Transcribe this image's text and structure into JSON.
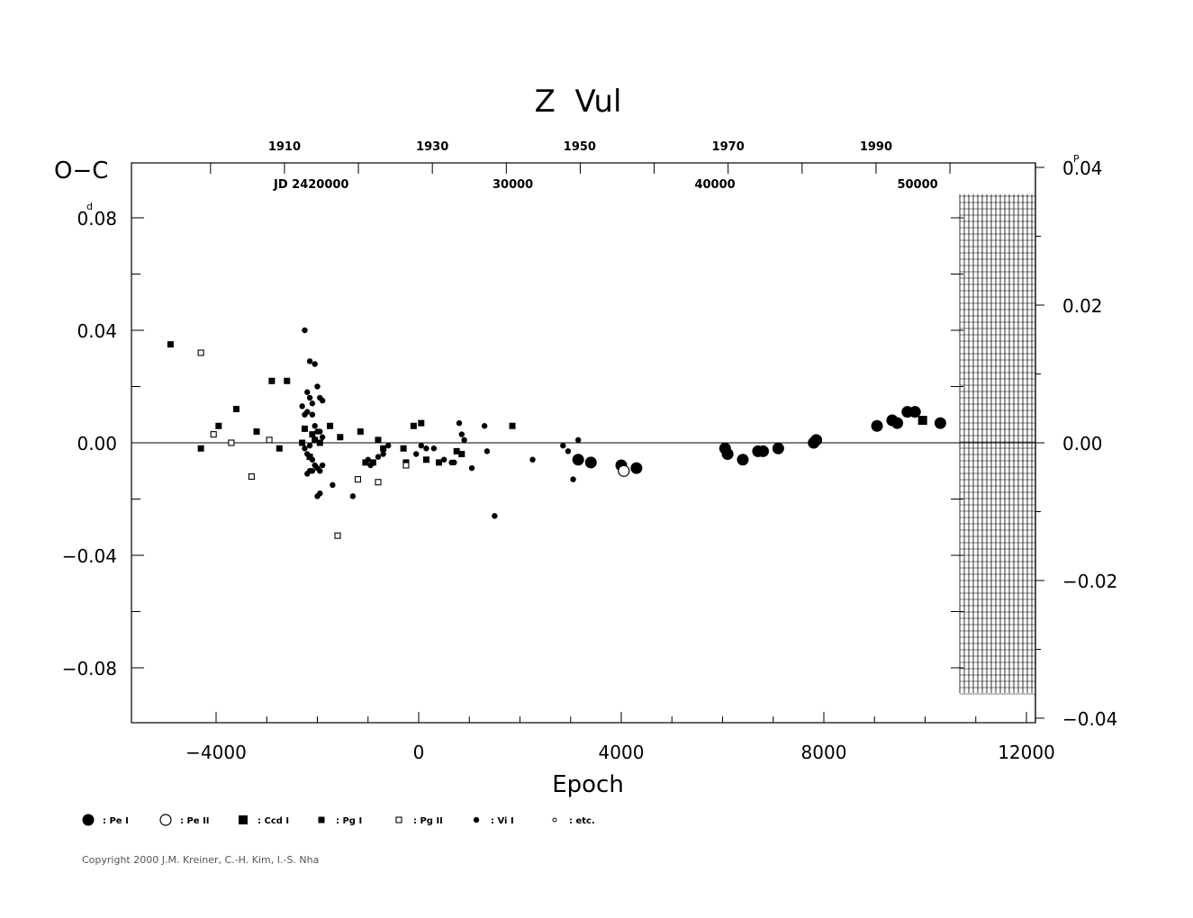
{
  "chart_data": {
    "type": "scatter",
    "title": "Z  Vul",
    "xlabel": "Epoch",
    "ylabel": "O−C",
    "ylabel_unit": "d",
    "ylabel_right_unit": "P",
    "xlim": [
      -5500,
      12000
    ],
    "ylim": [
      -0.1,
      0.1
    ],
    "x_ticks": [
      "−4000",
      "0",
      "4000",
      "8000",
      "12000"
    ],
    "x_tick_values": [
      -4000,
      0,
      4000,
      8000,
      12000
    ],
    "y_ticks": [
      "0.08",
      "0.04",
      "0.00",
      "−0.04",
      "−0.08"
    ],
    "y_tick_values": [
      0.08,
      0.04,
      0.0,
      -0.04,
      -0.08
    ],
    "y_right_ticks": [
      "0.04",
      "0.02",
      "0.00",
      "−0.02",
      "−0.04"
    ],
    "y_right_tick_values": [
      0.04,
      0.02,
      0.0,
      -0.02,
      -0.04
    ],
    "year_ticks": [
      "1910",
      "1930",
      "1950",
      "1970",
      "1990"
    ],
    "year_tick_epochs": [
      -2650,
      270,
      3180,
      6110,
      9030
    ],
    "jd_labels": [
      "JD  2420000",
      "30000",
      "40000",
      "50000"
    ],
    "jd_label_epochs": [
      -2120,
      1860,
      5850,
      9850
    ],
    "grid": false,
    "zero_line": true,
    "legend_position": "bottom-left",
    "legend": [
      {
        "symbol": "filled-circle-large",
        "label": ": Pe I"
      },
      {
        "symbol": "open-circle",
        "label": ": Pe II"
      },
      {
        "symbol": "filled-square-large",
        "label": ": Ccd I"
      },
      {
        "symbol": "filled-square-small",
        "label": ": Pg I"
      },
      {
        "symbol": "open-square",
        "label": ": Pg II"
      },
      {
        "symbol": "filled-circle-small",
        "label": ": Vi I"
      },
      {
        "symbol": "open-circle-tiny",
        "label": ": etc."
      }
    ],
    "series": [
      {
        "name": ": Pe I",
        "symbol": "filled-circle-large",
        "x": [
          3150,
          3400,
          4000,
          4300,
          6050,
          6100,
          6400,
          6700,
          6800,
          7100,
          7800,
          7850,
          9050,
          9350,
          9450,
          9650,
          9800,
          10300
        ],
        "y": [
          -0.006,
          -0.007,
          -0.008,
          -0.009,
          -0.002,
          -0.004,
          -0.006,
          -0.003,
          -0.003,
          -0.002,
          0.0,
          0.001,
          0.006,
          0.008,
          0.007,
          0.011,
          0.011,
          0.007
        ]
      },
      {
        "name": ": Pe II",
        "symbol": "open-circle",
        "x": [
          4050
        ],
        "y": [
          -0.01
        ]
      },
      {
        "name": ": Ccd I",
        "symbol": "filled-square-large",
        "x": [
          9950
        ],
        "y": [
          0.008
        ]
      },
      {
        "name": ": Pg I",
        "symbol": "filled-square-small",
        "x": [
          -4900,
          -4300,
          -3950,
          -3600,
          -3200,
          -2900,
          -2750,
          -2600,
          -2300,
          -2250,
          -2150,
          -2100,
          -2050,
          -1950,
          -1750,
          -1550,
          -1150,
          -1050,
          -900,
          -800,
          -700,
          -300,
          -250,
          -100,
          50,
          150,
          400,
          750,
          850,
          1850
        ],
        "y": [
          0.035,
          -0.002,
          0.006,
          0.012,
          0.004,
          0.022,
          -0.002,
          0.022,
          0.0,
          0.005,
          -0.005,
          0.003,
          0.001,
          0.0,
          0.006,
          0.002,
          0.004,
          -0.007,
          -0.007,
          0.001,
          -0.002,
          -0.002,
          -0.007,
          0.006,
          0.007,
          -0.006,
          -0.007,
          -0.003,
          -0.004,
          0.006
        ]
      },
      {
        "name": ": Pg II",
        "symbol": "open-square",
        "x": [
          -4300,
          -4050,
          -3700,
          -3300,
          -2950,
          -1600,
          -1200,
          -800,
          -250
        ],
        "y": [
          0.032,
          0.003,
          0.0,
          -0.012,
          0.001,
          -0.033,
          -0.013,
          -0.014,
          -0.008
        ]
      },
      {
        "name": ": Vi I",
        "symbol": "filled-circle-small",
        "x": [
          -2300,
          -2250,
          -2200,
          -2150,
          -2100,
          -2050,
          -2000,
          -1950,
          -1900,
          -2250,
          -2200,
          -2150,
          -2100,
          -2050,
          -2000,
          -1950,
          -1900,
          -2250,
          -2200,
          -2150,
          -2100,
          -2050,
          -2000,
          -1950,
          -1900,
          -2200,
          -2150,
          -2100,
          -2000,
          -1950,
          -1700,
          -1300,
          -1000,
          -950,
          -800,
          -700,
          -600,
          -50,
          50,
          150,
          300,
          500,
          650,
          700,
          800,
          850,
          900,
          1050,
          1300,
          1350,
          1500,
          2250,
          2850,
          2950,
          3050,
          3150
        ],
        "y": [
          0.013,
          0.04,
          0.018,
          0.016,
          0.014,
          0.028,
          0.02,
          0.016,
          0.015,
          0.01,
          0.011,
          0.029,
          0.01,
          0.006,
          0.004,
          0.004,
          0.002,
          -0.002,
          -0.004,
          -0.01,
          -0.006,
          -0.008,
          -0.009,
          -0.01,
          -0.008,
          -0.011,
          -0.001,
          -0.01,
          -0.019,
          -0.018,
          -0.015,
          -0.019,
          -0.006,
          -0.008,
          -0.005,
          -0.004,
          -0.001,
          -0.004,
          -0.001,
          -0.002,
          -0.002,
          -0.006,
          -0.007,
          -0.007,
          0.007,
          0.003,
          0.001,
          -0.009,
          0.006,
          -0.003,
          -0.026,
          -0.006,
          -0.001,
          -0.003,
          -0.013,
          0.001
        ]
      }
    ]
  },
  "copyright": "Copyright 2000 J.M. Kreiner, C.-H. Kim, I.-S. Nha"
}
